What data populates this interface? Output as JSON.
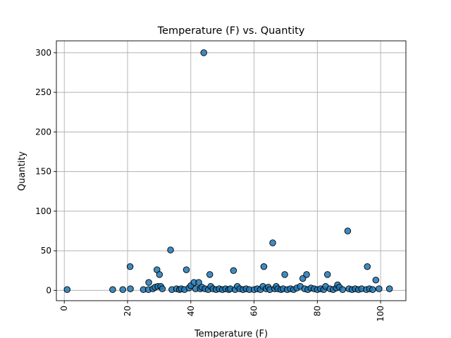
{
  "chart_data": {
    "type": "scatter",
    "title": "Temperature (F) vs. Quantity",
    "xlabel": "Temperature (F)",
    "ylabel": "Quantity",
    "xlim": [
      -2.5,
      108
    ],
    "ylim": [
      -13,
      315
    ],
    "xticks": [
      0,
      20,
      40,
      60,
      80,
      100
    ],
    "yticks": [
      0,
      50,
      100,
      150,
      200,
      250,
      300
    ],
    "grid": true,
    "marker_color": "#1f77b4",
    "points": [
      {
        "x": 0.9,
        "y": 1
      },
      {
        "x": 15.3,
        "y": 1
      },
      {
        "x": 18.5,
        "y": 1
      },
      {
        "x": 20.8,
        "y": 30
      },
      {
        "x": 20.9,
        "y": 2
      },
      {
        "x": 25,
        "y": 1
      },
      {
        "x": 26.6,
        "y": 1
      },
      {
        "x": 26.7,
        "y": 10
      },
      {
        "x": 28,
        "y": 2
      },
      {
        "x": 28.7,
        "y": 4
      },
      {
        "x": 29.3,
        "y": 26
      },
      {
        "x": 29.6,
        "y": 5
      },
      {
        "x": 30.1,
        "y": 20
      },
      {
        "x": 30.5,
        "y": 5
      },
      {
        "x": 31,
        "y": 2
      },
      {
        "x": 33.6,
        "y": 51
      },
      {
        "x": 34,
        "y": 1
      },
      {
        "x": 35.5,
        "y": 2
      },
      {
        "x": 36.4,
        "y": 1
      },
      {
        "x": 37,
        "y": 2
      },
      {
        "x": 38,
        "y": 1
      },
      {
        "x": 38.6,
        "y": 26
      },
      {
        "x": 39.4,
        "y": 3
      },
      {
        "x": 40,
        "y": 6
      },
      {
        "x": 41,
        "y": 10
      },
      {
        "x": 41.5,
        "y": 2
      },
      {
        "x": 42.5,
        "y": 10
      },
      {
        "x": 43,
        "y": 2
      },
      {
        "x": 43.5,
        "y": 4
      },
      {
        "x": 44.1,
        "y": 300
      },
      {
        "x": 44.5,
        "y": 2
      },
      {
        "x": 45.5,
        "y": 1
      },
      {
        "x": 46,
        "y": 20
      },
      {
        "x": 46.3,
        "y": 5
      },
      {
        "x": 47,
        "y": 2
      },
      {
        "x": 48,
        "y": 1
      },
      {
        "x": 49,
        "y": 2
      },
      {
        "x": 50,
        "y": 1
      },
      {
        "x": 51,
        "y": 2
      },
      {
        "x": 52,
        "y": 1
      },
      {
        "x": 52.5,
        "y": 2
      },
      {
        "x": 53.5,
        "y": 25
      },
      {
        "x": 54,
        "y": 1
      },
      {
        "x": 54.7,
        "y": 5
      },
      {
        "x": 55.5,
        "y": 2
      },
      {
        "x": 56.5,
        "y": 1
      },
      {
        "x": 57.5,
        "y": 2
      },
      {
        "x": 58.5,
        "y": 1
      },
      {
        "x": 60,
        "y": 1
      },
      {
        "x": 61,
        "y": 2
      },
      {
        "x": 62,
        "y": 1
      },
      {
        "x": 62.8,
        "y": 5
      },
      {
        "x": 63.1,
        "y": 30
      },
      {
        "x": 63.8,
        "y": 2
      },
      {
        "x": 64.5,
        "y": 4
      },
      {
        "x": 65,
        "y": 1
      },
      {
        "x": 65.9,
        "y": 60
      },
      {
        "x": 66.5,
        "y": 2
      },
      {
        "x": 67,
        "y": 5
      },
      {
        "x": 67.5,
        "y": 2
      },
      {
        "x": 68.5,
        "y": 1
      },
      {
        "x": 69.2,
        "y": 2
      },
      {
        "x": 69.7,
        "y": 20
      },
      {
        "x": 70.5,
        "y": 1
      },
      {
        "x": 71.5,
        "y": 2
      },
      {
        "x": 72.5,
        "y": 1
      },
      {
        "x": 73.5,
        "y": 3
      },
      {
        "x": 74.6,
        "y": 5
      },
      {
        "x": 75.4,
        "y": 15
      },
      {
        "x": 76,
        "y": 2
      },
      {
        "x": 76.6,
        "y": 20
      },
      {
        "x": 77,
        "y": 1
      },
      {
        "x": 78,
        "y": 3
      },
      {
        "x": 79,
        "y": 2
      },
      {
        "x": 80,
        "y": 1
      },
      {
        "x": 81,
        "y": 2
      },
      {
        "x": 82,
        "y": 1
      },
      {
        "x": 82.6,
        "y": 5
      },
      {
        "x": 83.2,
        "y": 20
      },
      {
        "x": 84,
        "y": 2
      },
      {
        "x": 85,
        "y": 1
      },
      {
        "x": 86,
        "y": 3
      },
      {
        "x": 86.4,
        "y": 7
      },
      {
        "x": 87,
        "y": 4
      },
      {
        "x": 88,
        "y": 1
      },
      {
        "x": 89.6,
        "y": 75
      },
      {
        "x": 90,
        "y": 2
      },
      {
        "x": 91,
        "y": 1
      },
      {
        "x": 92,
        "y": 2
      },
      {
        "x": 93,
        "y": 1
      },
      {
        "x": 94,
        "y": 2
      },
      {
        "x": 95.5,
        "y": 1
      },
      {
        "x": 95.8,
        "y": 30
      },
      {
        "x": 96.5,
        "y": 2
      },
      {
        "x": 97.5,
        "y": 1
      },
      {
        "x": 98.5,
        "y": 13
      },
      {
        "x": 99.5,
        "y": 2
      },
      {
        "x": 102.8,
        "y": 2
      }
    ]
  }
}
